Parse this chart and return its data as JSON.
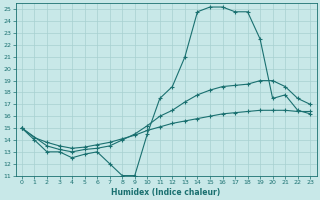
{
  "xlabel": "Humidex (Indice chaleur)",
  "ylabel": "",
  "bg_color": "#c8e8e8",
  "grid_color": "#a8d0d0",
  "line_color": "#1a7070",
  "xlim": [
    -0.5,
    23.5
  ],
  "ylim": [
    11,
    25.5
  ],
  "xticks": [
    0,
    1,
    2,
    3,
    4,
    5,
    6,
    7,
    8,
    9,
    10,
    11,
    12,
    13,
    14,
    15,
    16,
    17,
    18,
    19,
    20,
    21,
    22,
    23
  ],
  "yticks": [
    11,
    12,
    13,
    14,
    15,
    16,
    17,
    18,
    19,
    20,
    21,
    22,
    23,
    24,
    25
  ],
  "line1_x": [
    0,
    1,
    2,
    3,
    4,
    5,
    6,
    7,
    8,
    9,
    10,
    11,
    12,
    13,
    14,
    15,
    16,
    17,
    18,
    19,
    20,
    21,
    22,
    23
  ],
  "line1_y": [
    15,
    14,
    13,
    13,
    12.5,
    12.8,
    13,
    12,
    11,
    11,
    14.5,
    17.5,
    18.5,
    21,
    24.8,
    25.2,
    25.2,
    24.8,
    24.8,
    22.5,
    17.5,
    17.8,
    16.5,
    16.2
  ],
  "line2_x": [
    0,
    2,
    3,
    4,
    5,
    6,
    7,
    8,
    9,
    10,
    11,
    12,
    13,
    14,
    15,
    16,
    17,
    18,
    19,
    20,
    21,
    22,
    23
  ],
  "line2_y": [
    15,
    13.5,
    13.2,
    13.0,
    13.2,
    13.3,
    13.5,
    14.0,
    14.5,
    15.2,
    16.0,
    16.5,
    17.2,
    17.8,
    18.2,
    18.5,
    18.6,
    18.7,
    19.0,
    19.0,
    18.5,
    17.5,
    17.0
  ],
  "line3_x": [
    0,
    1,
    2,
    3,
    4,
    5,
    6,
    7,
    8,
    9,
    10,
    11,
    12,
    13,
    14,
    15,
    16,
    17,
    18,
    19,
    20,
    21,
    22,
    23
  ],
  "line3_y": [
    15,
    14.2,
    13.8,
    13.5,
    13.3,
    13.4,
    13.6,
    13.8,
    14.1,
    14.4,
    14.8,
    15.1,
    15.4,
    15.6,
    15.8,
    16.0,
    16.2,
    16.3,
    16.4,
    16.5,
    16.5,
    16.5,
    16.4,
    16.4
  ]
}
